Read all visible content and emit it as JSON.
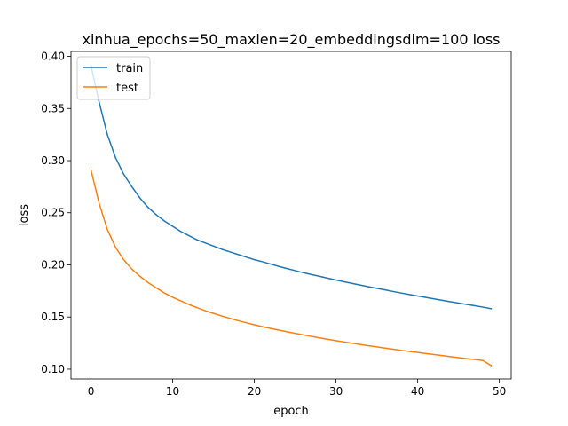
{
  "chart_data": {
    "type": "line",
    "title": "xinhua_epochs=50_maxlen=20_embeddingsdim=100 loss",
    "xlabel": "epoch",
    "ylabel": "loss",
    "xlim": [
      -2.45,
      51.45
    ],
    "ylim": [
      0.0906,
      0.4047
    ],
    "xticks": [
      0,
      10,
      20,
      30,
      40,
      50
    ],
    "xtick_labels": [
      "0",
      "10",
      "20",
      "30",
      "40",
      "50"
    ],
    "yticks": [
      0.1,
      0.15,
      0.2,
      0.25,
      0.3,
      0.35,
      0.4
    ],
    "ytick_labels": [
      "0.10",
      "0.15",
      "0.20",
      "0.25",
      "0.30",
      "0.35",
      "0.40"
    ],
    "grid": false,
    "legend_position": "top-left",
    "x": [
      0,
      1,
      2,
      3,
      4,
      5,
      6,
      7,
      8,
      9,
      10,
      11,
      12,
      13,
      14,
      15,
      16,
      17,
      18,
      19,
      20,
      21,
      22,
      23,
      24,
      25,
      26,
      27,
      28,
      29,
      30,
      31,
      32,
      33,
      34,
      35,
      36,
      37,
      38,
      39,
      40,
      41,
      42,
      43,
      44,
      45,
      46,
      47,
      48,
      49
    ],
    "series": [
      {
        "name": "train",
        "color": "#1f77b4",
        "values": [
          0.391,
          0.356,
          0.325,
          0.303,
          0.287,
          0.275,
          0.264,
          0.255,
          0.248,
          0.242,
          0.237,
          0.232,
          0.228,
          0.224,
          0.221,
          0.218,
          0.215,
          0.2125,
          0.21,
          0.2075,
          0.205,
          0.203,
          0.2008,
          0.1985,
          0.1965,
          0.1945,
          0.1925,
          0.1907,
          0.189,
          0.1872,
          0.1855,
          0.1838,
          0.1822,
          0.1806,
          0.179,
          0.1775,
          0.176,
          0.1745,
          0.173,
          0.1716,
          0.1702,
          0.1688,
          0.1674,
          0.166,
          0.1647,
          0.1634,
          0.1621,
          0.1608,
          0.1595,
          0.158
        ]
      },
      {
        "name": "test",
        "color": "#ff7f0e",
        "values": [
          0.291,
          0.259,
          0.234,
          0.217,
          0.205,
          0.196,
          0.189,
          0.183,
          0.178,
          0.173,
          0.169,
          0.1655,
          0.162,
          0.159,
          0.156,
          0.1535,
          0.151,
          0.1487,
          0.1465,
          0.1445,
          0.1425,
          0.1407,
          0.139,
          0.1374,
          0.1358,
          0.1343,
          0.1328,
          0.1314,
          0.13,
          0.1286,
          0.1273,
          0.126,
          0.1248,
          0.1236,
          0.1224,
          0.1213,
          0.1202,
          0.1191,
          0.118,
          0.117,
          0.116,
          0.115,
          0.114,
          0.113,
          0.112,
          0.111,
          0.1101,
          0.1092,
          0.1083,
          0.1034
        ]
      }
    ]
  }
}
